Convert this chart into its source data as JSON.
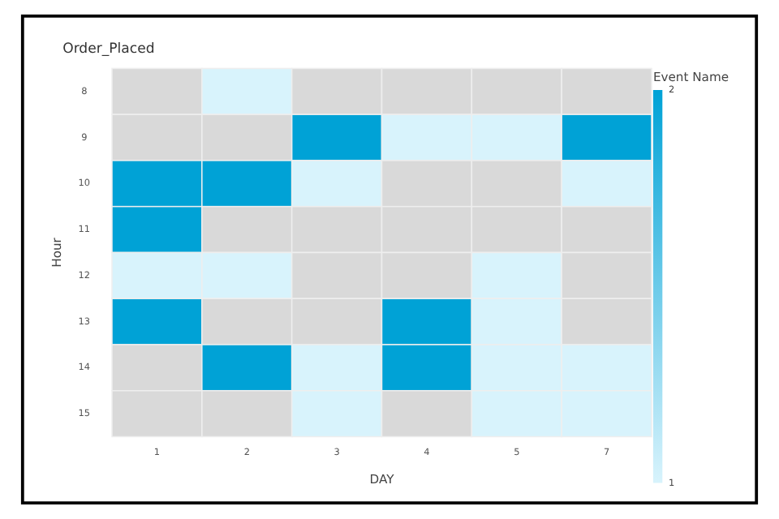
{
  "chart_data": {
    "type": "heatmap",
    "title": "Order_Placed",
    "xlabel": "DAY",
    "ylabel": "Hour",
    "clabel": "Event Name",
    "categories": [
      "1",
      "2",
      "3",
      "4",
      "5",
      "7"
    ],
    "y_categories": [
      "8",
      "9",
      "10",
      "11",
      "12",
      "13",
      "14",
      "15"
    ],
    "cells": [
      [
        null,
        1,
        null,
        null,
        null,
        null
      ],
      [
        null,
        null,
        2,
        1,
        1,
        2
      ],
      [
        2,
        2,
        1,
        null,
        null,
        1
      ],
      [
        2,
        null,
        null,
        null,
        null,
        null
      ],
      [
        1,
        1,
        null,
        null,
        1,
        null
      ],
      [
        2,
        null,
        null,
        2,
        1,
        null
      ],
      [
        null,
        2,
        1,
        2,
        1,
        1
      ],
      [
        null,
        null,
        1,
        null,
        1,
        1
      ]
    ],
    "clim": [
      1,
      2
    ],
    "cticks": [
      1,
      2
    ]
  }
}
